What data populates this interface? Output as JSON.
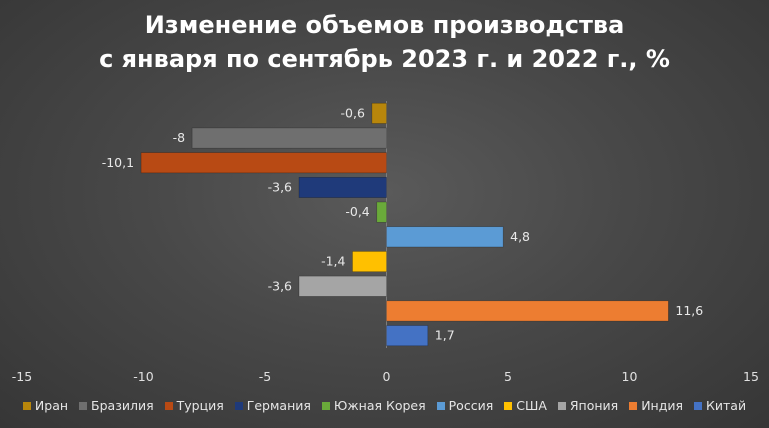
{
  "chart_data": {
    "type": "bar",
    "orientation": "horizontal",
    "title": [
      "Изменение объемов производства",
      "с января по сентябрь 2023 г. и 2022 г., %"
    ],
    "xlabel": "",
    "ylabel": "",
    "xlim": [
      -15,
      15
    ],
    "xticks": [
      -15,
      -10,
      -5,
      0,
      5,
      10,
      15
    ],
    "xtick_labels": [
      "-15",
      "-10",
      "-5",
      "0",
      "5",
      "10",
      "15"
    ],
    "grid": false,
    "legend_position": "bottom",
    "series": [
      {
        "name": "Иран",
        "value": -0.6,
        "label": "-0,6",
        "color": "#b8860b"
      },
      {
        "name": "Бразилия",
        "value": -8,
        "label": "-8",
        "color": "#6f6f6f"
      },
      {
        "name": "Турция",
        "value": -10.1,
        "label": "-10,1",
        "color": "#b84a14"
      },
      {
        "name": "Германия",
        "value": -3.6,
        "label": "-3,6",
        "color": "#1f3a7a"
      },
      {
        "name": "Южная Корея",
        "value": -0.4,
        "label": "-0,4",
        "color": "#6aaa3a"
      },
      {
        "name": "Россия",
        "value": 4.8,
        "label": "4,8",
        "color": "#5b9bd5"
      },
      {
        "name": "США",
        "value": -1.4,
        "label": "-1,4",
        "color": "#ffc000"
      },
      {
        "name": "Япония",
        "value": -3.6,
        "label": "-3,6",
        "color": "#a5a5a5"
      },
      {
        "name": "Индия",
        "value": 11.6,
        "label": "11,6",
        "color": "#ed7d31"
      },
      {
        "name": "Китай",
        "value": 1.7,
        "label": "1,7",
        "color": "#4472c4"
      }
    ]
  }
}
